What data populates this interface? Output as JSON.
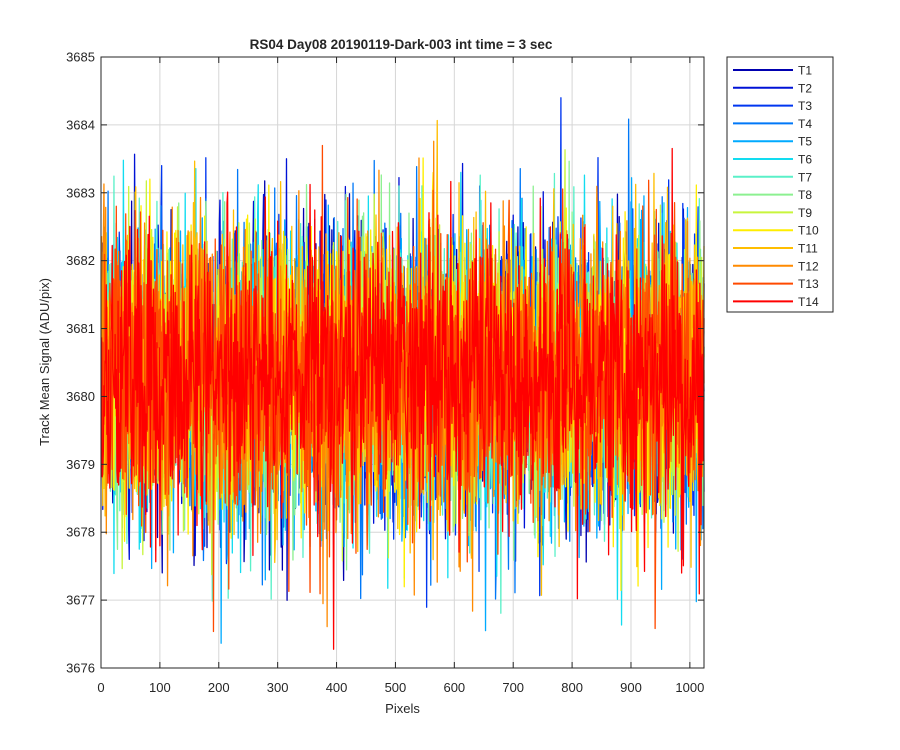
{
  "chart_data": {
    "type": "line",
    "title": "RS04 Day08 20190119-Dark-003 int time = 3 sec",
    "xlabel": "Pixels",
    "ylabel": "Track Mean Signal (ADU/pix)",
    "xlim": [
      0,
      1024
    ],
    "ylim": [
      3676,
      3685
    ],
    "xticks": [
      0,
      100,
      200,
      300,
      400,
      500,
      600,
      700,
      800,
      900,
      1000
    ],
    "yticks": [
      3676,
      3677,
      3678,
      3679,
      3680,
      3681,
      3682,
      3683,
      3684,
      3685
    ],
    "x_range": [
      1,
      1024
    ],
    "grid": true,
    "legend_location": "outside-top-right",
    "series_center": 3680.3,
    "series_spread": 1.05,
    "series_min_observed": 3676.1,
    "series_max_observed": 3684.4,
    "series": [
      {
        "name": "T1",
        "color": "#0000b0"
      },
      {
        "name": "T2",
        "color": "#0012d6"
      },
      {
        "name": "T3",
        "color": "#0036f0"
      },
      {
        "name": "T4",
        "color": "#0078f8"
      },
      {
        "name": "T5",
        "color": "#00aaff"
      },
      {
        "name": "T6",
        "color": "#12dcf0"
      },
      {
        "name": "T7",
        "color": "#5af0c8"
      },
      {
        "name": "T8",
        "color": "#8cf090"
      },
      {
        "name": "T9",
        "color": "#c8f53c"
      },
      {
        "name": "T10",
        "color": "#ffee00"
      },
      {
        "name": "T11",
        "color": "#ffbe00"
      },
      {
        "name": "T12",
        "color": "#ff8a00"
      },
      {
        "name": "T13",
        "color": "#ff4a00"
      },
      {
        "name": "T14",
        "color": "#ff0000"
      }
    ]
  }
}
